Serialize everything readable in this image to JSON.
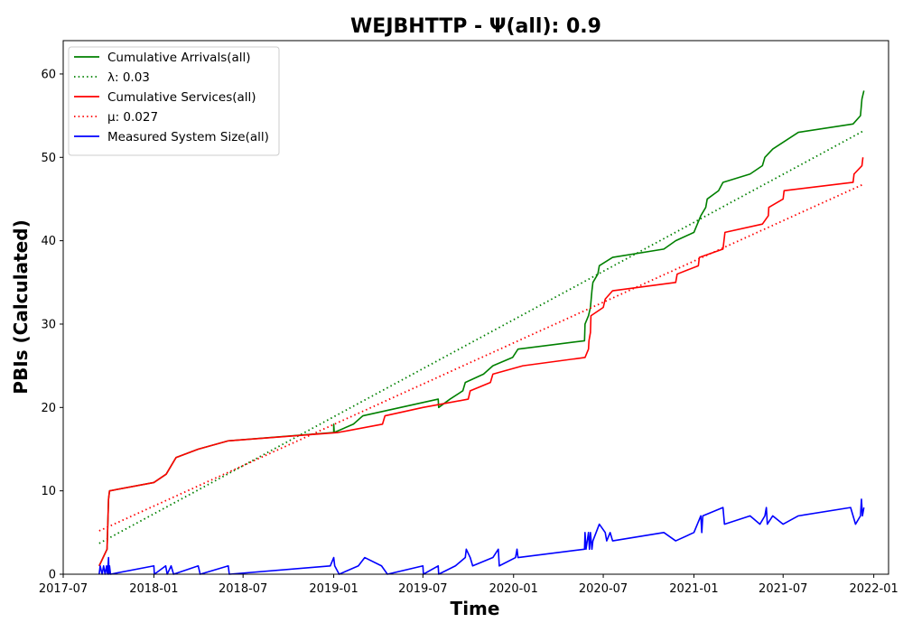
{
  "chart_data": {
    "type": "line",
    "title": "WEJBHTTP -  Ψ(all): 0.9",
    "xlabel": "Time",
    "ylabel": "PBIs (Calculated)",
    "xlim": [
      "2017-07-01",
      "2022-01-31"
    ],
    "ylim": [
      0,
      64
    ],
    "x_ticks": [
      "2017-07",
      "2018-01",
      "2018-07",
      "2019-01",
      "2019-07",
      "2020-01",
      "2020-07",
      "2021-01",
      "2021-07",
      "2022-01"
    ],
    "y_ticks": [
      0,
      10,
      20,
      30,
      40,
      50,
      60
    ],
    "grid": false,
    "legend_position": "top-left",
    "series": [
      {
        "name": "Cumulative Arrivals(all)",
        "color": "#008000",
        "style": "solid",
        "points": [
          [
            "2017-09-12",
            1
          ],
          [
            "2017-09-28",
            3
          ],
          [
            "2017-10-01",
            9
          ],
          [
            "2017-10-03",
            10
          ],
          [
            "2018-01-01",
            11
          ],
          [
            "2018-01-26",
            12
          ],
          [
            "2018-02-15",
            14
          ],
          [
            "2018-04-01",
            15
          ],
          [
            "2018-06-01",
            16
          ],
          [
            "2019-01-01",
            17
          ],
          [
            "2019-01-01",
            18
          ],
          [
            "2019-01-02",
            17
          ],
          [
            "2019-02-10",
            18
          ],
          [
            "2019-03-01",
            19
          ],
          [
            "2019-08-01",
            21
          ],
          [
            "2019-08-02",
            20
          ],
          [
            "2019-08-25",
            21
          ],
          [
            "2019-09-20",
            22
          ],
          [
            "2019-09-25",
            23
          ],
          [
            "2019-11-01",
            24
          ],
          [
            "2019-11-20",
            25
          ],
          [
            "2019-12-30",
            26
          ],
          [
            "2020-01-10",
            27
          ],
          [
            "2020-05-24",
            28
          ],
          [
            "2020-05-25",
            30
          ],
          [
            "2020-06-01",
            31
          ],
          [
            "2020-06-05",
            32
          ],
          [
            "2020-06-08",
            34
          ],
          [
            "2020-06-10",
            35
          ],
          [
            "2020-06-20",
            36
          ],
          [
            "2020-06-23",
            37
          ],
          [
            "2020-07-20",
            38
          ],
          [
            "2020-11-01",
            39
          ],
          [
            "2020-11-25",
            40
          ],
          [
            "2021-01-01",
            41
          ],
          [
            "2021-01-15",
            43
          ],
          [
            "2021-01-25",
            44
          ],
          [
            "2021-01-28",
            45
          ],
          [
            "2021-02-20",
            46
          ],
          [
            "2021-03-01",
            47
          ],
          [
            "2021-04-25",
            48
          ],
          [
            "2021-05-20",
            49
          ],
          [
            "2021-05-25",
            50
          ],
          [
            "2021-06-10",
            51
          ],
          [
            "2021-08-01",
            53
          ],
          [
            "2021-11-20",
            54
          ],
          [
            "2021-12-05",
            55
          ],
          [
            "2021-12-08",
            57
          ],
          [
            "2021-12-12",
            58
          ]
        ]
      },
      {
        "name": "λ: 0.03",
        "color": "#008000",
        "style": "dotted",
        "points": [
          [
            "2017-09-12",
            3.7
          ],
          [
            "2021-12-12",
            53.2
          ]
        ]
      },
      {
        "name": "Cumulative Services(all)",
        "color": "#ff0000",
        "style": "solid",
        "points": [
          [
            "2017-09-12",
            1
          ],
          [
            "2017-09-28",
            3
          ],
          [
            "2017-10-01",
            9
          ],
          [
            "2017-10-03",
            10
          ],
          [
            "2018-01-01",
            11
          ],
          [
            "2018-01-26",
            12
          ],
          [
            "2018-02-15",
            14
          ],
          [
            "2018-04-01",
            15
          ],
          [
            "2018-06-01",
            16
          ],
          [
            "2019-01-10",
            17
          ],
          [
            "2019-04-10",
            18
          ],
          [
            "2019-04-15",
            19
          ],
          [
            "2019-07-01",
            20
          ],
          [
            "2019-10-01",
            21
          ],
          [
            "2019-10-05",
            22
          ],
          [
            "2019-11-15",
            23
          ],
          [
            "2019-11-20",
            24
          ],
          [
            "2020-01-20",
            25
          ],
          [
            "2020-05-25",
            26
          ],
          [
            "2020-06-01",
            27
          ],
          [
            "2020-06-02",
            28
          ],
          [
            "2020-06-05",
            29
          ],
          [
            "2020-06-06",
            31
          ],
          [
            "2020-07-01",
            32
          ],
          [
            "2020-07-05",
            33
          ],
          [
            "2020-07-20",
            34
          ],
          [
            "2020-11-25",
            35
          ],
          [
            "2020-11-28",
            36
          ],
          [
            "2021-01-10",
            37
          ],
          [
            "2021-01-12",
            38
          ],
          [
            "2021-03-01",
            39
          ],
          [
            "2021-03-05",
            41
          ],
          [
            "2021-05-20",
            42
          ],
          [
            "2021-06-01",
            43
          ],
          [
            "2021-06-02",
            44
          ],
          [
            "2021-07-01",
            45
          ],
          [
            "2021-07-03",
            46
          ],
          [
            "2021-11-20",
            47
          ],
          [
            "2021-11-22",
            48
          ],
          [
            "2021-12-08",
            49
          ],
          [
            "2021-12-10",
            50
          ]
        ]
      },
      {
        "name": "μ: 0.027",
        "color": "#ff0000",
        "style": "dotted",
        "points": [
          [
            "2017-09-12",
            5.2
          ],
          [
            "2021-12-12",
            46.8
          ]
        ]
      },
      {
        "name": "Measured System Size(all)",
        "color": "#0000ff",
        "style": "solid",
        "points": [
          [
            "2017-09-12",
            0
          ],
          [
            "2017-09-14",
            1
          ],
          [
            "2017-09-18",
            0
          ],
          [
            "2017-09-21",
            1
          ],
          [
            "2017-09-24",
            0
          ],
          [
            "2017-09-27",
            1
          ],
          [
            "2017-09-29",
            0
          ],
          [
            "2017-10-01",
            2
          ],
          [
            "2017-10-02",
            0
          ],
          [
            "2017-10-03",
            1
          ],
          [
            "2017-10-05",
            0
          ],
          [
            "2018-01-01",
            1
          ],
          [
            "2018-01-02",
            0
          ],
          [
            "2018-01-25",
            1
          ],
          [
            "2018-01-28",
            0
          ],
          [
            "2018-02-05",
            1
          ],
          [
            "2018-02-10",
            0
          ],
          [
            "2018-04-01",
            1
          ],
          [
            "2018-04-05",
            0
          ],
          [
            "2018-06-01",
            1
          ],
          [
            "2018-06-03",
            0
          ],
          [
            "2018-12-25",
            1
          ],
          [
            "2019-01-01",
            2
          ],
          [
            "2019-01-03",
            1
          ],
          [
            "2019-01-12",
            0
          ],
          [
            "2019-02-20",
            1
          ],
          [
            "2019-03-05",
            2
          ],
          [
            "2019-04-08",
            1
          ],
          [
            "2019-04-20",
            0
          ],
          [
            "2019-07-01",
            1
          ],
          [
            "2019-07-02",
            0
          ],
          [
            "2019-08-01",
            1
          ],
          [
            "2019-08-02",
            0
          ],
          [
            "2019-09-05",
            1
          ],
          [
            "2019-09-25",
            2
          ],
          [
            "2019-09-27",
            3
          ],
          [
            "2019-10-05",
            2
          ],
          [
            "2019-10-10",
            1
          ],
          [
            "2019-11-20",
            2
          ],
          [
            "2019-12-01",
            3
          ],
          [
            "2019-12-03",
            1
          ],
          [
            "2020-01-05",
            2
          ],
          [
            "2020-01-08",
            3
          ],
          [
            "2020-01-10",
            2
          ],
          [
            "2020-05-24",
            3
          ],
          [
            "2020-05-25",
            5
          ],
          [
            "2020-05-27",
            3
          ],
          [
            "2020-06-01",
            5
          ],
          [
            "2020-06-03",
            3
          ],
          [
            "2020-06-05",
            5
          ],
          [
            "2020-06-08",
            3
          ],
          [
            "2020-06-10",
            4
          ],
          [
            "2020-06-23",
            6
          ],
          [
            "2020-07-05",
            5
          ],
          [
            "2020-07-08",
            4
          ],
          [
            "2020-07-15",
            5
          ],
          [
            "2020-07-20",
            4
          ],
          [
            "2020-11-01",
            5
          ],
          [
            "2020-11-25",
            4
          ],
          [
            "2021-01-01",
            5
          ],
          [
            "2021-01-15",
            7
          ],
          [
            "2021-01-17",
            5
          ],
          [
            "2021-01-19",
            7
          ],
          [
            "2021-03-01",
            8
          ],
          [
            "2021-03-04",
            6
          ],
          [
            "2021-04-25",
            7
          ],
          [
            "2021-05-15",
            6
          ],
          [
            "2021-05-25",
            7
          ],
          [
            "2021-05-28",
            8
          ],
          [
            "2021-05-30",
            6
          ],
          [
            "2021-06-10",
            7
          ],
          [
            "2021-07-01",
            6
          ],
          [
            "2021-08-01",
            7
          ],
          [
            "2021-11-15",
            8
          ],
          [
            "2021-11-25",
            6
          ],
          [
            "2021-12-05",
            7
          ],
          [
            "2021-12-07",
            9
          ],
          [
            "2021-12-09",
            7
          ],
          [
            "2021-12-12",
            8
          ]
        ]
      }
    ]
  }
}
